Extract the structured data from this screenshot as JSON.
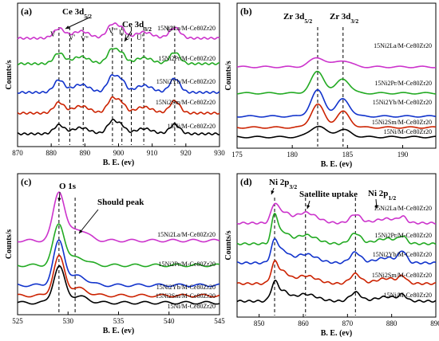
{
  "colors": {
    "Ni": "#000000",
    "Sm": "#cc2200",
    "Yb": "#1133cc",
    "Pr": "#22aa22",
    "La": "#cc33cc"
  },
  "chart_data": [
    {
      "panel": "(a)",
      "type": "line",
      "xlabel": "B. E. (ev)",
      "ylabel": "Counts/s",
      "xlim": [
        870,
        930
      ],
      "xticks": [
        "870",
        "880",
        "890",
        "900",
        "910",
        "920",
        "930"
      ],
      "annotations": [
        "Ce 3d5/2",
        "Ce 3d3/2",
        "V",
        "V'",
        "V''",
        "V'''",
        "U",
        "U'",
        "U''",
        "U'''"
      ],
      "ref_lines_x": [
        882.3,
        885.5,
        889.5,
        898.2,
        901.0,
        903.8,
        907.5,
        916.7
      ],
      "series": [
        {
          "name": "15Ni/M-Ce80Zr20",
          "color": "Ni",
          "offset": 0,
          "peaks": [
            [
              882.3,
              0.5,
              1.5
            ],
            [
              888.8,
              0.35,
              2.5
            ],
            [
              898.2,
              0.75,
              1.5
            ],
            [
              901.0,
              0.4,
              1.2
            ],
            [
              907.5,
              0.3,
              2.5
            ],
            [
              916.7,
              0.55,
              1.5
            ]
          ]
        },
        {
          "name": "15Ni2Sm/M-Ce80Zr20",
          "color": "Sm",
          "offset": 1,
          "peaks": [
            [
              882.3,
              0.6,
              1.5
            ],
            [
              888.8,
              0.4,
              2.5
            ],
            [
              898.2,
              0.85,
              1.5
            ],
            [
              901.0,
              0.5,
              1.2
            ],
            [
              907.5,
              0.35,
              2.5
            ],
            [
              916.7,
              0.7,
              1.5
            ]
          ]
        },
        {
          "name": "15Ni2Yb/M-Ce80Zr20",
          "color": "Yb",
          "offset": 2,
          "peaks": [
            [
              882.3,
              0.7,
              1.5
            ],
            [
              888.8,
              0.45,
              2.5
            ],
            [
              898.2,
              0.95,
              1.5
            ],
            [
              901.0,
              0.6,
              1.2
            ],
            [
              907.5,
              0.4,
              2.5
            ],
            [
              916.7,
              0.8,
              1.5
            ]
          ]
        },
        {
          "name": "15Ni2Pr/M-Ce80Zr20",
          "color": "Pr",
          "offset": 3,
          "peaks": [
            [
              882.3,
              0.6,
              1.5
            ],
            [
              888.8,
              0.4,
              2.5
            ],
            [
              898.2,
              0.85,
              1.5
            ],
            [
              901.0,
              0.5,
              1.2
            ],
            [
              907.5,
              0.35,
              2.5
            ],
            [
              916.7,
              0.65,
              1.5
            ]
          ]
        },
        {
          "name": "15Ni2La/M-Ce80Zr20",
          "color": "La",
          "offset": 4,
          "peaks": [
            [
              882.3,
              0.55,
              1.6
            ],
            [
              888.8,
              0.4,
              2.5
            ],
            [
              898.2,
              0.8,
              1.6
            ],
            [
              901.0,
              0.45,
              1.2
            ],
            [
              907.5,
              0.35,
              2.5
            ],
            [
              916.7,
              0.6,
              1.6
            ]
          ]
        }
      ]
    },
    {
      "panel": "(b)",
      "type": "line",
      "xlabel": "B. E. (ev)",
      "ylabel": "Counts/s",
      "xlim": [
        175,
        193
      ],
      "xticks": [
        "175",
        "180",
        "185",
        "190"
      ],
      "annotations": [
        "Zr 3d5/2",
        "Zr 3d3/2"
      ],
      "ref_lines_x": [
        182.3,
        184.6
      ],
      "series": [
        {
          "name": "15Ni/M-Ce80Zr20",
          "color": "Ni",
          "offset": 0,
          "peaks": [
            [
              182.3,
              0.75,
              0.7
            ],
            [
              184.6,
              0.5,
              0.7
            ]
          ]
        },
        {
          "name": "15Ni2Sm/M-Ce80Zr20",
          "color": "Sm",
          "offset": 1,
          "peaks": [
            [
              182.3,
              1.6,
              0.6
            ],
            [
              184.6,
              1.1,
              0.6
            ]
          ]
        },
        {
          "name": "15Ni2Yb/M-Ce80Zr20",
          "color": "Yb",
          "offset": 2,
          "peaks": [
            [
              182.3,
              1.8,
              0.6
            ],
            [
              184.6,
              1.2,
              0.6
            ]
          ]
        },
        {
          "name": "15Ni2Pr/M-Ce80Zr20",
          "color": "Pr",
          "offset": 3,
          "peaks": [
            [
              182.3,
              1.5,
              0.6
            ],
            [
              184.6,
              1.0,
              0.6
            ]
          ]
        },
        {
          "name": "15Ni2La/M-Ce80Zr20",
          "color": "La",
          "offset": 4,
          "peaks": [
            [
              182.3,
              0.65,
              0.7
            ],
            [
              184.6,
              0.45,
              0.7
            ]
          ]
        }
      ]
    },
    {
      "panel": "(c)",
      "type": "line",
      "xlabel": "B. E. (ev)",
      "ylabel": "Counts/s",
      "xlim": [
        525,
        545
      ],
      "xticks": [
        "525",
        "530",
        "535",
        "540",
        "545"
      ],
      "annotations": [
        "O 1s",
        "Should peak"
      ],
      "ref_lines_x": [
        529.1,
        530.7
      ],
      "series": [
        {
          "name": "15Ni/M-Ce80Zr20",
          "color": "Ni",
          "offset": 0,
          "peaks": [
            [
              529.1,
              1.4,
              0.55
            ],
            [
              531.0,
              0.25,
              0.9
            ]
          ]
        },
        {
          "name": "15Ni2Sm/M-Ce80Zr20",
          "color": "Sm",
          "offset": 1,
          "peaks": [
            [
              529.1,
              1.5,
              0.55
            ],
            [
              531.0,
              0.28,
              0.9
            ]
          ]
        },
        {
          "name": "15Ni2Yb/M-Ce80Zr20",
          "color": "Yb",
          "offset": 2,
          "peaks": [
            [
              529.1,
              1.7,
              0.55
            ],
            [
              531.0,
              0.35,
              0.9
            ]
          ]
        },
        {
          "name": "15Ni2Pr/M-Ce80Zr20",
          "color": "Pr",
          "offset": 3,
          "peaks": [
            [
              529.1,
              1.6,
              0.55
            ],
            [
              531.0,
              0.3,
              0.9
            ]
          ]
        },
        {
          "name": "15Ni2La/M-Ce80Zr20",
          "color": "La",
          "offset": 4,
          "peaks": [
            [
              529.1,
              1.9,
              0.55
            ],
            [
              531.0,
              0.45,
              0.9
            ]
          ]
        }
      ]
    },
    {
      "panel": "(d)",
      "type": "line",
      "xlabel": "B. E. (ev)",
      "ylabel": "Counts/s",
      "xlim": [
        845,
        890
      ],
      "xticks": [
        "850",
        "860",
        "870",
        "880",
        "890"
      ],
      "annotations": [
        "Ni 2p3/2",
        "Satellite uptake",
        "Ni 2p1/2"
      ],
      "ref_lines_x": [
        853.5,
        860.5,
        871.8
      ],
      "series": [
        {
          "name": "15Ni/M-Ce80Zr20",
          "color": "Ni",
          "offset": 0,
          "peaks": [
            [
              853.5,
              1.0,
              0.8
            ],
            [
              855.5,
              0.5,
              1.2
            ],
            [
              860.5,
              0.4,
              2.5
            ],
            [
              871.8,
              0.5,
              1.2
            ],
            [
              879.0,
              0.25,
              2.5
            ],
            [
              882.5,
              0.3,
              0.8
            ]
          ]
        },
        {
          "name": "15Ni2Sm/M-Ce80Zr20",
          "color": "Sm",
          "offset": 1,
          "peaks": [
            [
              853.5,
              1.1,
              0.8
            ],
            [
              855.5,
              0.6,
              1.2
            ],
            [
              860.5,
              0.45,
              2.5
            ],
            [
              871.8,
              0.55,
              1.2
            ],
            [
              879.0,
              0.3,
              2.5
            ],
            [
              882.5,
              0.35,
              0.8
            ]
          ]
        },
        {
          "name": "15Ni2Yb/M-Ce80Zr20",
          "color": "Yb",
          "offset": 2,
          "peaks": [
            [
              853.5,
              1.2,
              0.8
            ],
            [
              855.5,
              0.6,
              1.2
            ],
            [
              860.5,
              0.5,
              2.5
            ],
            [
              871.8,
              0.6,
              1.2
            ],
            [
              879.0,
              0.3,
              2.5
            ],
            [
              882.5,
              0.6,
              0.8
            ]
          ]
        },
        {
          "name": "15Ni2Pr/M-Ce80Zr20",
          "color": "Pr",
          "offset": 3,
          "peaks": [
            [
              853.5,
              1.6,
              0.7
            ],
            [
              855.5,
              0.6,
              1.2
            ],
            [
              860.5,
              0.5,
              2.5
            ],
            [
              871.8,
              0.6,
              1.2
            ],
            [
              879.0,
              0.3,
              2.5
            ],
            [
              882.5,
              0.35,
              0.8
            ]
          ]
        },
        {
          "name": "15Ni2La/M-Ce80Zr20",
          "color": "La",
          "offset": 4,
          "peaks": [
            [
              853.5,
              1.0,
              0.8
            ],
            [
              855.5,
              0.55,
              1.2
            ],
            [
              860.5,
              0.6,
              2.5
            ],
            [
              871.8,
              0.5,
              1.2
            ],
            [
              879.0,
              0.25,
              2.5
            ],
            [
              882.5,
              0.3,
              0.8
            ]
          ]
        }
      ]
    }
  ]
}
